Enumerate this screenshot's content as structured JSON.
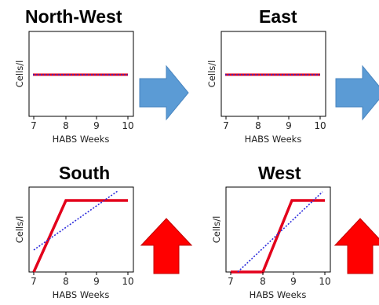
{
  "panels": [
    {
      "title": "North-West",
      "xlabel": "HABS Weeks",
      "ylabel": "Cells/l",
      "xticks": [
        "7",
        "8",
        "9",
        "10"
      ]
    },
    {
      "title": "East",
      "xlabel": "HABS Weeks",
      "ylabel": "Cells/l",
      "xticks": [
        "7",
        "8",
        "9",
        "10"
      ]
    },
    {
      "title": "South",
      "xlabel": "HABS Weeks",
      "ylabel": "Cells/l",
      "xticks": [
        "7",
        "8",
        "9",
        "10"
      ]
    },
    {
      "title": "West",
      "xlabel": "HABS Weeks",
      "ylabel": "Cells/l",
      "xticks": [
        "7",
        "8",
        "9",
        "10"
      ]
    }
  ],
  "arrows": [
    {
      "direction": "right",
      "color": "#5b9bd5"
    },
    {
      "direction": "right",
      "color": "#5b9bd5"
    },
    {
      "direction": "up",
      "color": "#ff0000"
    },
    {
      "direction": "up",
      "color": "#ff0000"
    }
  ]
}
